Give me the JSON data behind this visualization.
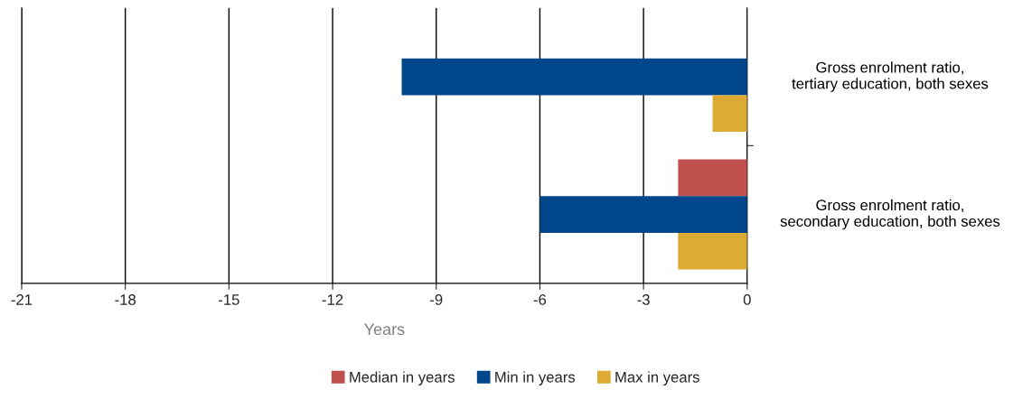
{
  "chart_data": {
    "type": "bar",
    "orientation": "horizontal",
    "xlabel": "Years",
    "categories": [
      "Gross enrolment ratio,\ntertiary education, both sexes",
      "Gross enrolment ratio,\nsecondary education, both sexes"
    ],
    "series": [
      {
        "name": "Median in years",
        "color": "#c0504d",
        "values": [
          null,
          -2
        ]
      },
      {
        "name": "Min in years",
        "color": "#00468b",
        "values": [
          -10,
          -6
        ]
      },
      {
        "name": "Max in years",
        "color": "#ddaa33",
        "values": [
          -1,
          -2
        ]
      }
    ],
    "xlim": [
      -21,
      0
    ],
    "xticks": [
      -21,
      -18,
      -15,
      -12,
      -9,
      -6,
      -3,
      0
    ],
    "grid": "x",
    "legend": "bottom"
  }
}
